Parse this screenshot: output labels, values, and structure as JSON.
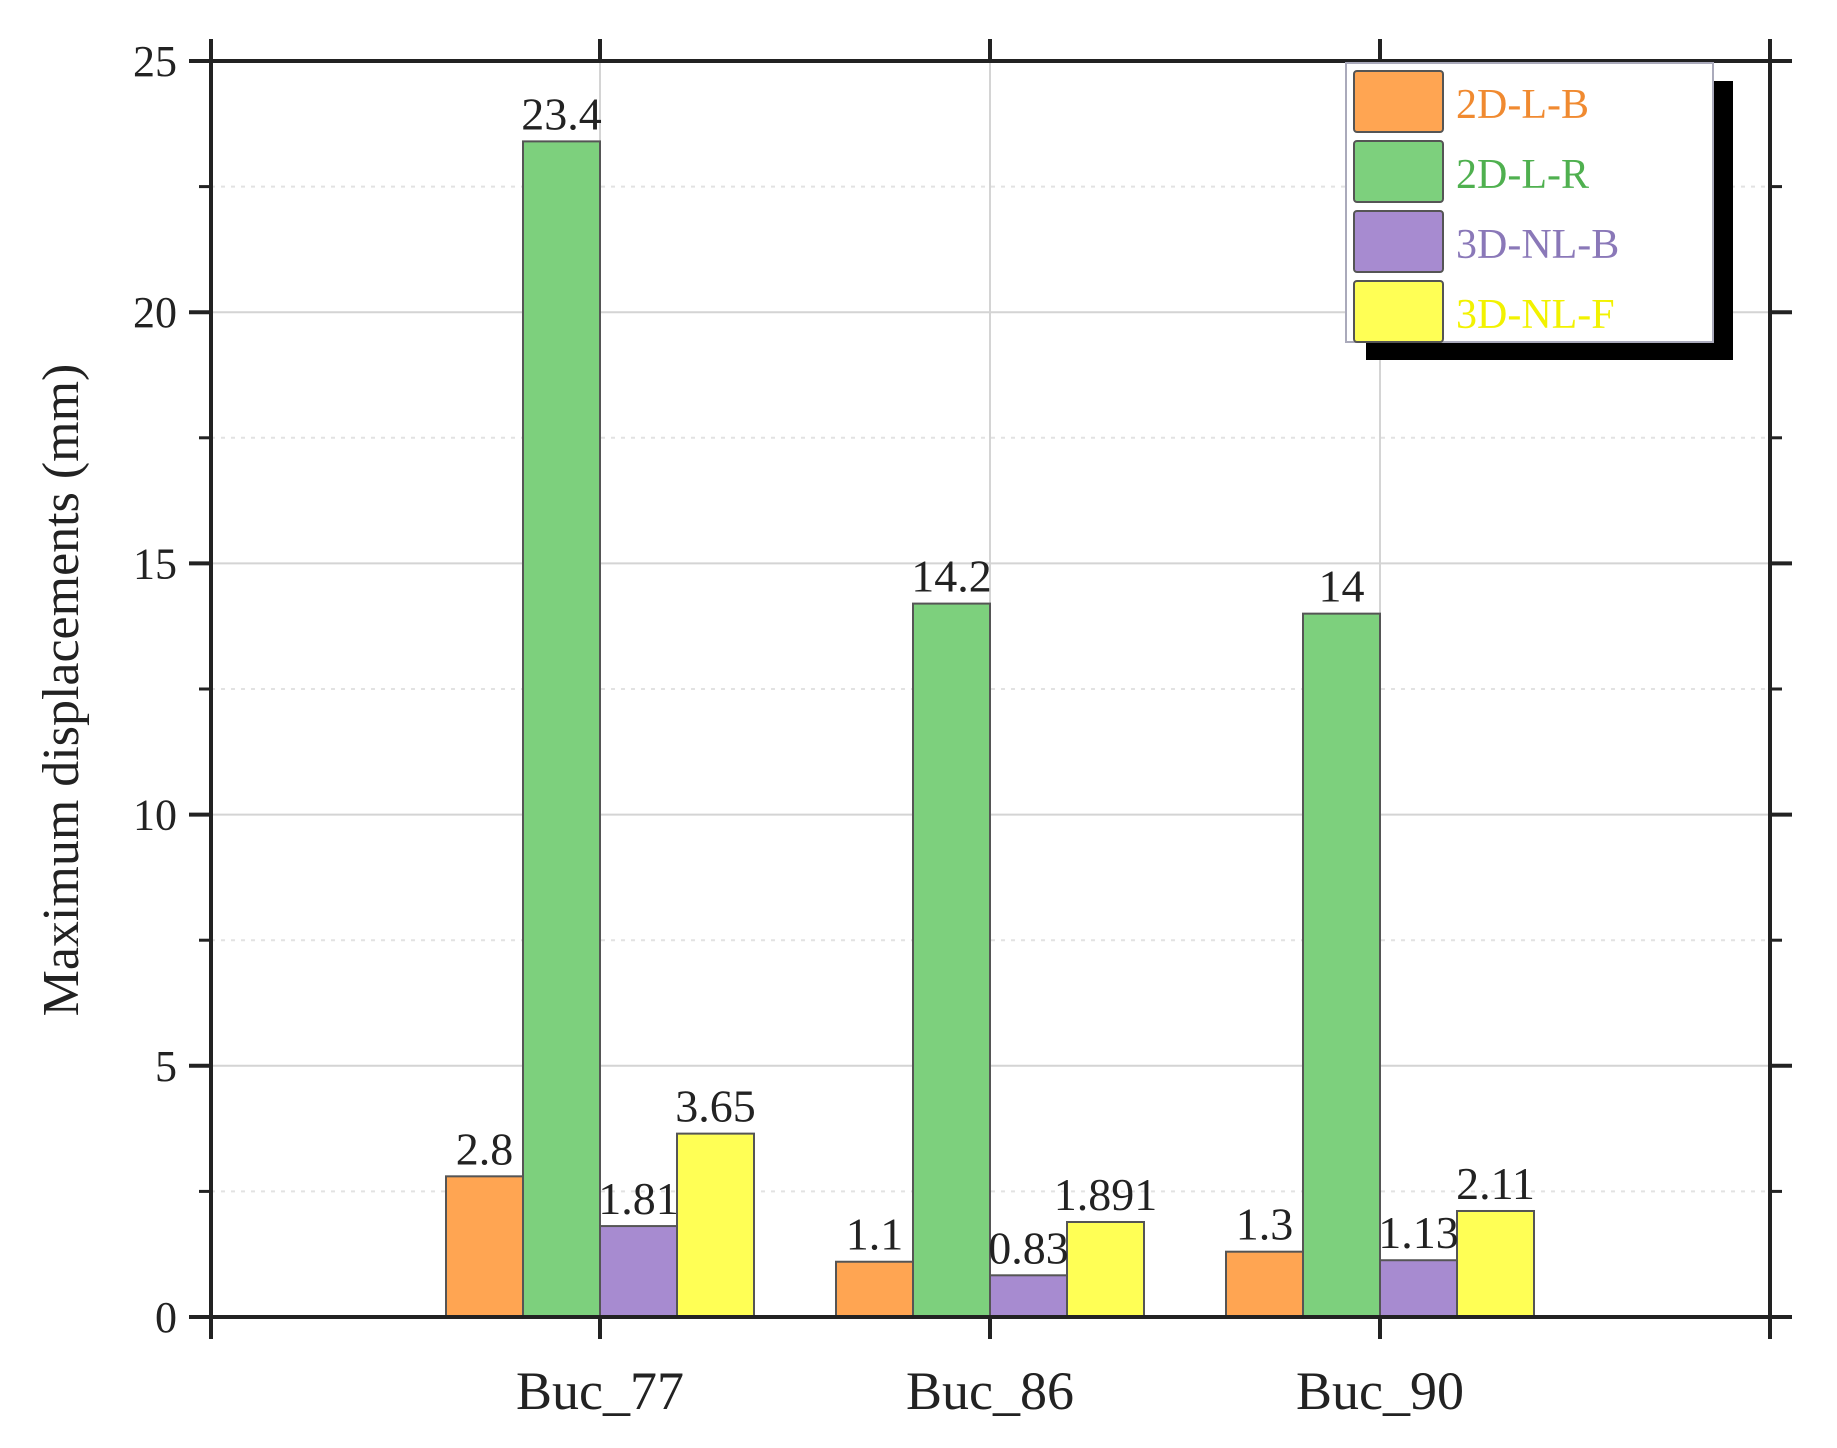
{
  "chart_data": {
    "type": "bar",
    "title": "",
    "xlabel": "",
    "ylabel": "Maximum displacements (mm)",
    "ylim": [
      0,
      25
    ],
    "yticks": [
      0,
      5,
      10,
      15,
      20,
      25
    ],
    "grid": true,
    "legend_position": "top-right",
    "categories": [
      "Buc_77",
      "Buc_86",
      "Buc_90"
    ],
    "series": [
      {
        "name": "2D-L-B",
        "color": "#FFA552",
        "values": [
          2.8,
          1.1,
          1.3
        ],
        "labels": [
          "2.8",
          "1.1",
          "1.3"
        ]
      },
      {
        "name": "2D-L-R",
        "color": "#7DD07D",
        "values": [
          23.4,
          14.2,
          14.0
        ],
        "labels": [
          "23.4",
          "14.2",
          "14"
        ]
      },
      {
        "name": "3D-NL-B",
        "color": "#A78BD0",
        "values": [
          1.81,
          0.83,
          1.13
        ],
        "labels": [
          "1.81",
          "0.83",
          "1.13"
        ]
      },
      {
        "name": "3D-NL-F",
        "color": "#FFFF55",
        "values": [
          3.65,
          1.891,
          2.11
        ],
        "labels": [
          "3.65",
          "1.891",
          "2.11"
        ]
      }
    ]
  },
  "legend": {
    "items": [
      {
        "label": "2D-L-B",
        "text_color": "#F08A30"
      },
      {
        "label": "2D-L-R",
        "text_color": "#4FB04F"
      },
      {
        "label": "3D-NL-B",
        "text_color": "#8A78B8"
      },
      {
        "label": "3D-NL-F",
        "text_color": "#F2F200"
      }
    ]
  }
}
